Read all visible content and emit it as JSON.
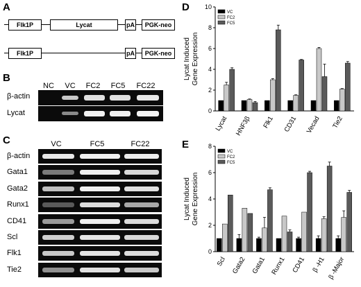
{
  "panels": {
    "a": "A",
    "b": "B",
    "c": "C",
    "d": "D",
    "e": "E"
  },
  "construct_a": {
    "row1": [
      "Flk1P",
      "Lycat",
      "pA",
      "PGK-neo"
    ],
    "row2": [
      "Flk1P",
      "pA",
      "PGK-neo"
    ]
  },
  "gel_b": {
    "lanes": [
      "NC",
      "VC",
      "FC2",
      "FC5",
      "FC22"
    ],
    "rows": [
      "β-actin",
      "Lycat"
    ]
  },
  "gel_c": {
    "lanes": [
      "VC",
      "FC5",
      "FC22"
    ],
    "rows": [
      "β-actin",
      "Gata1",
      "Gata2",
      "Runx1",
      "CD41",
      "Scl",
      "Flk1",
      "Tie2"
    ]
  },
  "chart_data": [
    {
      "type": "bar",
      "panel": "D",
      "categories": [
        "Lycat",
        "HNF3β",
        "Flk1",
        "CD31",
        "Vecad",
        "Tie2"
      ],
      "series": [
        {
          "name": "VC",
          "values": [
            1,
            1,
            1,
            1,
            1,
            1
          ],
          "errors": [
            0,
            0,
            0,
            0,
            0,
            0
          ],
          "color": "#000000"
        },
        {
          "name": "FC2",
          "values": [
            2.5,
            1.1,
            3.0,
            1.5,
            6.0,
            2.1
          ],
          "errors": [
            0.25,
            0.05,
            0.1,
            0.05,
            0.1,
            0.05
          ],
          "color": "#c8c8c8"
        },
        {
          "name": "FC5",
          "values": [
            4.0,
            0.8,
            7.8,
            4.9,
            3.3,
            4.6
          ],
          "errors": [
            0.15,
            0.1,
            0.45,
            0.05,
            1.2,
            0.15
          ],
          "color": "#5a5a5a"
        }
      ],
      "ylabel": "Lycat Induced\nGene Expression",
      "ylim": [
        0,
        10
      ],
      "yticks": [
        0,
        2,
        4,
        6,
        8,
        10
      ],
      "legend": "top-left"
    },
    {
      "type": "bar",
      "panel": "E",
      "categories": [
        "Scl",
        "Gata2",
        "Gata1",
        "Runx1",
        "CD41",
        "β -H1",
        "β -Major"
      ],
      "series": [
        {
          "name": "VC",
          "values": [
            1,
            1,
            1,
            1,
            1,
            1,
            1
          ],
          "errors": [
            0,
            0.3,
            0.1,
            0,
            0.1,
            0.2,
            0.2
          ],
          "color": "#000000"
        },
        {
          "name": "FC2",
          "values": [
            2.1,
            3.3,
            1.8,
            2.7,
            3.0,
            2.5,
            2.6
          ],
          "errors": [
            0,
            0,
            0.8,
            0,
            0,
            0.15,
            0.5
          ],
          "color": "#c8c8c8"
        },
        {
          "name": "FC5",
          "values": [
            4.3,
            2.9,
            4.7,
            1.5,
            6.0,
            6.5,
            4.5
          ],
          "errors": [
            0,
            0,
            0.15,
            0.15,
            0.1,
            0.3,
            0.15
          ],
          "color": "#5a5a5a"
        }
      ],
      "ylabel": "Lycat Induced\nGene Expression",
      "ylim": [
        0,
        8
      ],
      "yticks": [
        0,
        2,
        4,
        6,
        8
      ],
      "legend": "top-left"
    }
  ]
}
